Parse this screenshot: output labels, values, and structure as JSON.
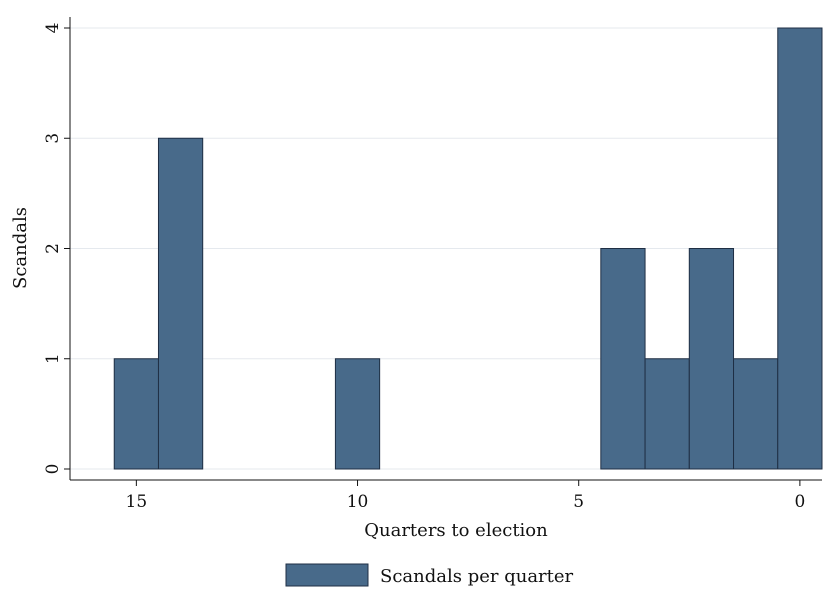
{
  "chart_data": {
    "type": "bar",
    "x": [
      15,
      14,
      10,
      4,
      3,
      2,
      1,
      0
    ],
    "values": [
      1,
      3,
      1,
      2,
      1,
      2,
      1,
      4
    ],
    "series": [
      {
        "name": "Scandals per quarter",
        "x": [
          15,
          14,
          10,
          4,
          3,
          2,
          1,
          0
        ],
        "values": [
          1,
          3,
          1,
          2,
          1,
          2,
          1,
          4
        ]
      }
    ],
    "xlabel": "Quarters to election",
    "ylabel": "Scandals",
    "x_ticks": [
      "15",
      "10",
      "5",
      "0"
    ],
    "y_ticks": [
      "0",
      "1",
      "2",
      "3",
      "4"
    ],
    "xlim": [
      16.5,
      -0.5
    ],
    "ylim": [
      0,
      4
    ],
    "x_reversed": true,
    "grid": true,
    "legend_position": "bottom-center",
    "colors": {
      "bar_fill": "#486a8a",
      "bar_stroke": "#1f2f44",
      "grid": "#e5e9ee",
      "axis": "#111111"
    }
  }
}
